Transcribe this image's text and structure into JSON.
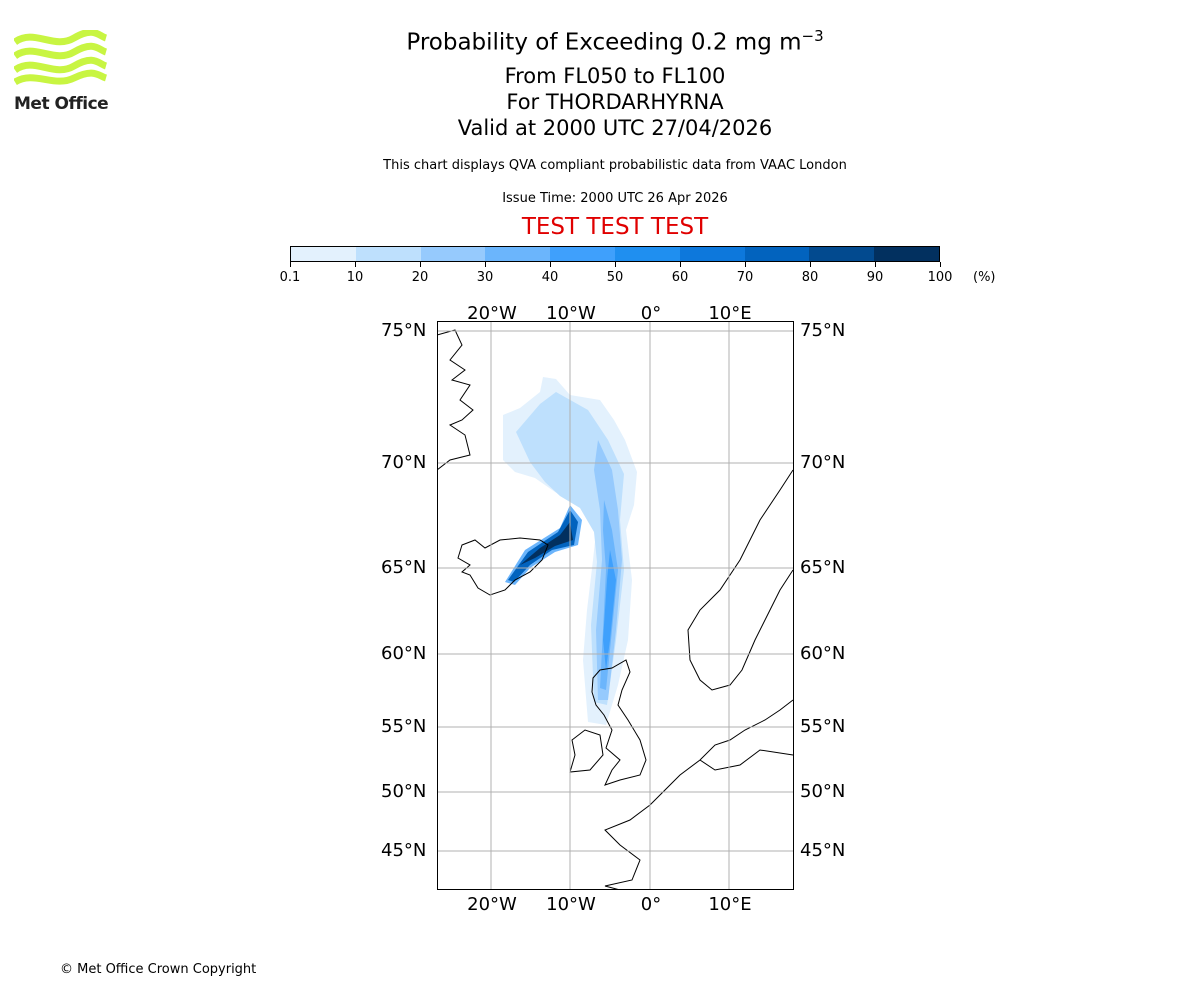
{
  "logo": {
    "text": "Met Office",
    "color": "#c8f542"
  },
  "header": {
    "title": "Probability of Exceeding 0.2 mg m",
    "title_sup": "−3",
    "line2": "From FL050 to FL100",
    "line3": "For THORDARHYRNA",
    "line4": "Valid at 2000 UTC 27/04/2026",
    "description": "This chart displays QVA compliant probabilistic data from VAAC London",
    "issue_time": "Issue Time: 2000 UTC 26 Apr 2026",
    "test_banner": "TEST TEST TEST"
  },
  "colorbar": {
    "ticks": [
      "0.1",
      "10",
      "20",
      "30",
      "40",
      "50",
      "60",
      "70",
      "80",
      "90",
      "100"
    ],
    "unit": "(%)",
    "colors": [
      "#e3f1fd",
      "#bee0fd",
      "#96cafd",
      "#6bb5fc",
      "#3fa0fc",
      "#1f8ff0",
      "#0d78dc",
      "#0263be",
      "#024a8f",
      "#02305f"
    ]
  },
  "chart_data": {
    "type": "heatmap",
    "title": "Probability of Exceeding 0.2 mg m-3",
    "lon_labels": [
      "20°W",
      "10°W",
      "0°",
      "10°E"
    ],
    "lat_labels": [
      "75°N",
      "70°N",
      "65°N",
      "60°N",
      "55°N",
      "50°N",
      "45°N"
    ],
    "lon_range": [
      -27,
      18
    ],
    "lat_range": [
      43,
      75.5
    ],
    "grid": true,
    "levels": [
      0.1,
      10,
      20,
      30,
      40,
      50,
      60,
      70,
      80,
      90,
      100
    ],
    "source": "THORDARHYRNA"
  },
  "footer": {
    "copyright": "© Met Office Crown Copyright"
  }
}
